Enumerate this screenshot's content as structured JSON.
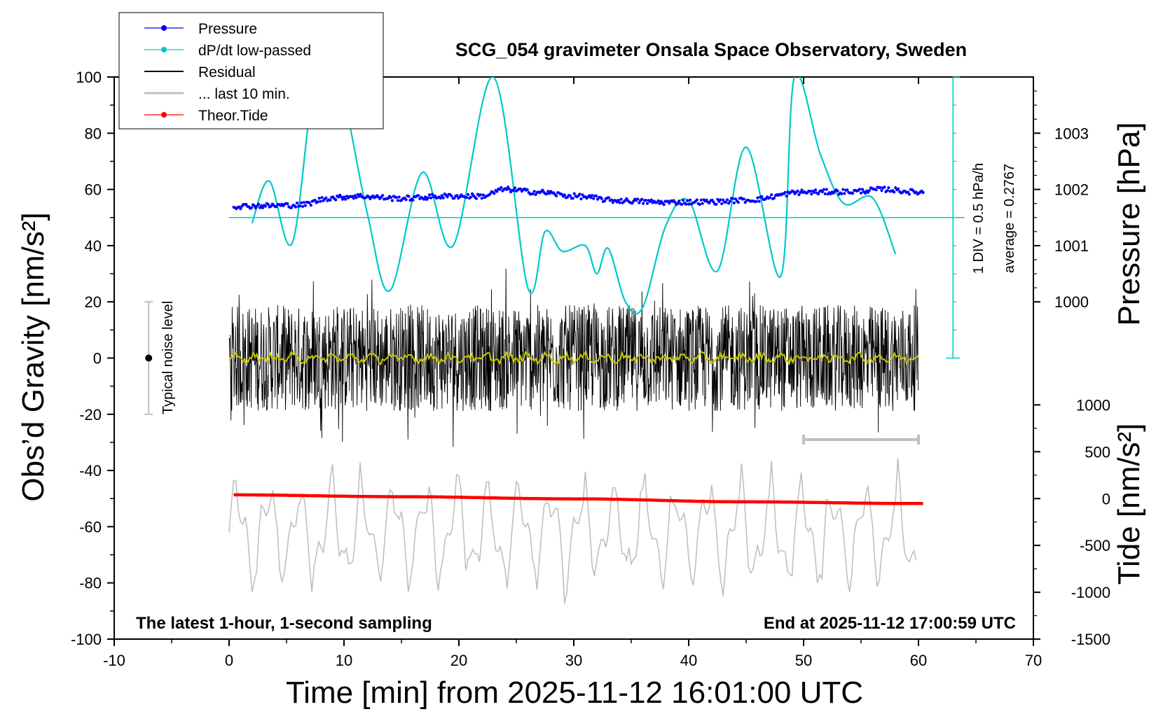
{
  "chart_data": {
    "type": "line",
    "title": "SCG_054 gravimeter Onsala Space Observatory, Sweden",
    "xlabel": "Time [min] from 2025-11-12 16:01:00 UTC",
    "ylabel_left": "Obs’d Gravity [nm/s²]",
    "ylabel_right_pressure": "Pressure [hPa]",
    "ylabel_right_tide": "Tide [nm/s²]",
    "xlim": [
      -10,
      70
    ],
    "ylim": [
      -100,
      100
    ],
    "xticks": [
      "-10",
      "0",
      "10",
      "20",
      "30",
      "40",
      "50",
      "60",
      "70"
    ],
    "yticks": [
      "-100",
      "-80",
      "-60",
      "-40",
      "-20",
      "0",
      "20",
      "40",
      "60",
      "80",
      "100"
    ],
    "pressure_ticks": [
      "1000",
      "1001",
      "1002",
      "1003"
    ],
    "pressure_tick_values": [
      1000,
      1001,
      1002,
      1003
    ],
    "tide_ticks": [
      "-1500",
      "-1000",
      "-500",
      "0",
      "500",
      "1000"
    ],
    "tide_tick_values": [
      -1500,
      -1000,
      -500,
      0,
      500,
      1000
    ],
    "legend": [
      {
        "label": "Pressure",
        "color": "#0000ff",
        "marker": true
      },
      {
        "label": "dP/dt low-passed",
        "color": "#00c8c8",
        "marker": true
      },
      {
        "label": "Residual",
        "color": "#000000",
        "marker": false
      },
      {
        "label": "... last 10 min.",
        "color": "#bfbfbf",
        "marker": false
      },
      {
        "label": "Theor.Tide",
        "color": "#ff0000",
        "marker": true
      }
    ],
    "annotations": {
      "bottom_left": "The latest 1-hour, 1-second sampling",
      "bottom_right": "End at 2025-11-12 17:00:59 UTC",
      "noise_label": "Typical noise level",
      "dpdt_scale": "1 DIV = 0.5 hPa/h",
      "dpdt_average": "average = 0.2767"
    },
    "noise_level": {
      "x": -7,
      "center": 0,
      "half_range": 20
    },
    "dpdt_baseline_y": 50,
    "last10_window": [
      50,
      60
    ],
    "series": [
      {
        "name": "Pressure",
        "color": "#0000ff",
        "axis": "pressure_hPa",
        "x": [
          0,
          3,
          6,
          9,
          11,
          15,
          19,
          22,
          24,
          27,
          30,
          34,
          38,
          42,
          45,
          50,
          54,
          57,
          60
        ],
        "values": [
          1001.7,
          1001.71,
          1001.72,
          1001.85,
          1001.88,
          1001.84,
          1001.88,
          1001.88,
          1002.0,
          1001.95,
          1001.88,
          1001.8,
          1001.77,
          1001.78,
          1001.81,
          1001.95,
          1001.96,
          1002.0,
          1001.95
        ]
      },
      {
        "name": "dP/dt low-passed",
        "color": "#00c8c8",
        "axis": "gravity",
        "x": [
          2,
          3.5,
          5.5,
          7.5,
          9.5,
          12,
          14,
          16.8,
          19.5,
          23,
          26,
          27.5,
          29,
          31,
          32,
          33,
          34.5,
          36,
          38,
          40,
          42.5,
          45,
          48,
          49.2,
          51.5,
          53.5,
          56,
          58
        ],
        "values": [
          48,
          63,
          41,
          100,
          100,
          52,
          24,
          66,
          40,
          100,
          25,
          45,
          38,
          40,
          30,
          39,
          20,
          18,
          47,
          56,
          31,
          75,
          29,
          100,
          72,
          55,
          57,
          37
        ]
      },
      {
        "name": "Residual",
        "color": "#000000",
        "axis": "gravity",
        "x_range": [
          0,
          60
        ],
        "amplitude": 28
      },
      {
        "name": "Residual smoothed",
        "color": "#c8c800",
        "axis": "gravity",
        "x_range": [
          0,
          60
        ],
        "amplitude": 2
      },
      {
        "name": "... last 10 min.",
        "color": "#bfbfbf",
        "axis": "gravity",
        "x_range": [
          0,
          60
        ],
        "center": -62,
        "amplitude": 24
      },
      {
        "name": "Theor.Tide",
        "color": "#ff0000",
        "axis": "tide_nm_s2",
        "x": [
          0,
          15,
          30,
          45,
          60
        ],
        "values": [
          40,
          20,
          -3,
          -35,
          -53
        ]
      }
    ]
  }
}
